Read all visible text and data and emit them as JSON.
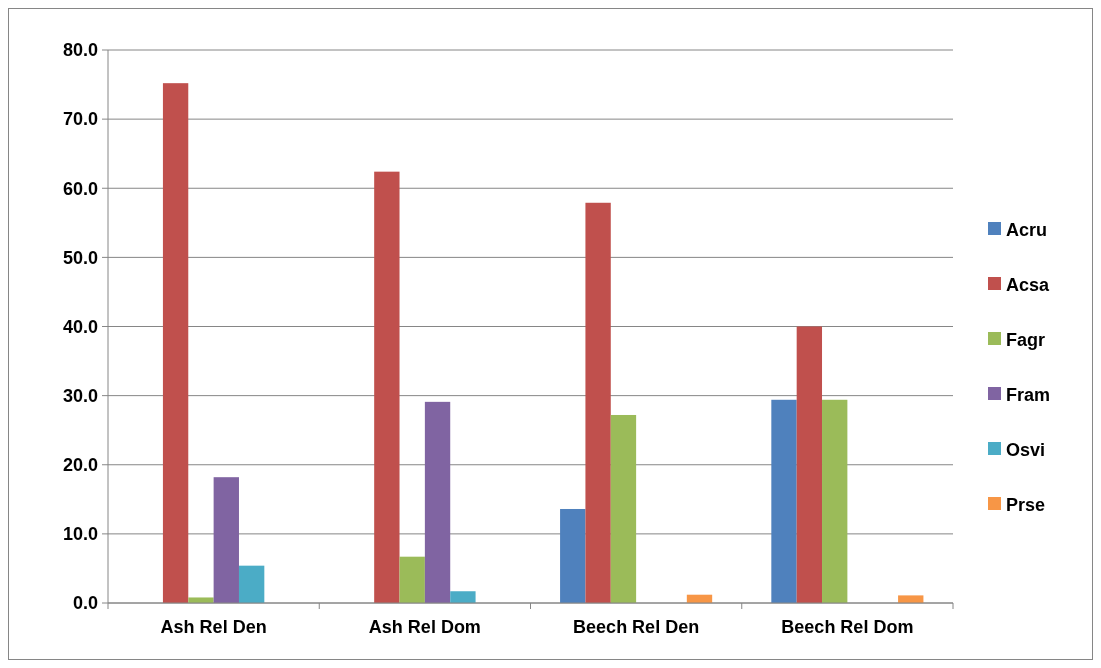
{
  "chart_data": {
    "type": "bar",
    "categories": [
      "Ash Rel Den",
      "Ash Rel Dom",
      "Beech Rel Den",
      "Beech Rel Dom"
    ],
    "series": [
      {
        "name": "Acru",
        "color": "#4f81bd",
        "values": [
          null,
          null,
          13.6,
          29.4
        ]
      },
      {
        "name": "Acsa",
        "color": "#c0504d",
        "values": [
          75.2,
          62.4,
          57.9,
          40.0
        ]
      },
      {
        "name": "Fagr",
        "color": "#9bbb59",
        "values": [
          0.8,
          6.7,
          27.2,
          29.4
        ]
      },
      {
        "name": "Fram",
        "color": "#8064a2",
        "values": [
          18.2,
          29.1,
          null,
          null
        ]
      },
      {
        "name": "Osvi",
        "color": "#4bacc6",
        "values": [
          5.4,
          1.7,
          null,
          null
        ]
      },
      {
        "name": "Prse",
        "color": "#f79646",
        "values": [
          null,
          null,
          1.2,
          1.1
        ]
      }
    ],
    "ylim": [
      0,
      80
    ],
    "yticks": [
      {
        "value": 0,
        "label": "0.0"
      },
      {
        "value": 10,
        "label": "10.0"
      },
      {
        "value": 20,
        "label": "20.0"
      },
      {
        "value": 30,
        "label": "30.0"
      },
      {
        "value": 40,
        "label": "40.0"
      },
      {
        "value": 50,
        "label": "50.0"
      },
      {
        "value": 60,
        "label": "60.0"
      },
      {
        "value": 70,
        "label": "70.0"
      },
      {
        "value": 80,
        "label": "80.0"
      }
    ],
    "grid": "y",
    "legend": "right"
  }
}
